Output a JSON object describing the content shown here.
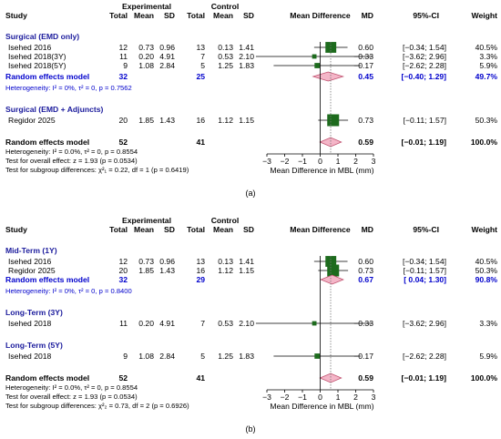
{
  "panels": [
    {
      "caption": "(a)",
      "headers": {
        "study": "Study",
        "experimental": "Experimental",
        "control": "Control",
        "total": "Total",
        "mean": "Mean",
        "sd": "SD",
        "mean_difference": "Mean Difference",
        "md": "MD",
        "ci": "95%-CI",
        "weight": "Weight"
      },
      "groups": [
        {
          "title": "Surgical (EMD only)",
          "studies": [
            {
              "name": "Isehed 2016",
              "e_total": "12",
              "e_mean": "0.73",
              "e_sd": "0.96",
              "c_total": "13",
              "c_mean": "0.13",
              "c_sd": "1.41",
              "md_text": "0.60",
              "ci_text": "[−0.34; 1.54]",
              "weight_text": "40.5%",
              "md": 0.6,
              "lo": -0.34,
              "hi": 1.54,
              "weight": 40.5
            },
            {
              "name": "Isehed 2018(3Y)",
              "e_total": "11",
              "e_mean": "0.20",
              "e_sd": "4.91",
              "c_total": "7",
              "c_mean": "0.53",
              "c_sd": "2.10",
              "md_text": "−0.33",
              "ci_text": "[−3.62; 2.96]",
              "weight_text": "3.3%",
              "md": -0.33,
              "lo": -3.62,
              "hi": 2.96,
              "weight": 3.3
            },
            {
              "name": "Isehed 2018(5Y)",
              "e_total": "9",
              "e_mean": "1.08",
              "e_sd": "2.84",
              "c_total": "5",
              "c_mean": "1.25",
              "c_sd": "1.83",
              "md_text": "−0.17",
              "ci_text": "[−2.62; 2.28]",
              "weight_text": "5.9%",
              "md": -0.17,
              "lo": -2.62,
              "hi": 2.28,
              "weight": 5.9
            }
          ],
          "pooled": {
            "label": "Random effects model",
            "e_total": "32",
            "c_total": "25",
            "md_text": "0.45",
            "ci_text": "[−0.40; 1.29]",
            "weight_text": "49.7%",
            "md": 0.45,
            "lo": -0.4,
            "hi": 1.29
          },
          "heterogeneity": "Heterogeneity: I² = 0%, τ² = 0, p = 0.7562"
        },
        {
          "title": "Surgical (EMD + Adjuncts)",
          "studies": [
            {
              "name": "Regidor 2025",
              "e_total": "20",
              "e_mean": "1.85",
              "e_sd": "1.43",
              "c_total": "16",
              "c_mean": "1.12",
              "c_sd": "1.15",
              "md_text": "0.73",
              "ci_text": "[−0.11; 1.57]",
              "weight_text": "50.3%",
              "md": 0.73,
              "lo": -0.11,
              "hi": 1.57,
              "weight": 50.3
            }
          ]
        }
      ],
      "overall": {
        "label": "Random effects model",
        "e_total": "52",
        "c_total": "41",
        "md_text": "0.59",
        "ci_text": "[−0.01; 1.19]",
        "weight_text": "100.0%",
        "md": 0.59,
        "lo": -0.01,
        "hi": 1.19
      },
      "footer": [
        "Heterogeneity: I² = 0.0%, τ² = 0, p = 0.8554",
        "Test for overall effect: z = 1.93 (p = 0.0534)",
        "Test for subgroup differences: χ²₁ = 0.22, df = 1 (p = 0.6419)"
      ],
      "axis": {
        "ticks": [
          -3,
          -2,
          -1,
          0,
          1,
          2,
          3
        ],
        "xlabel": "Mean Difference in MBL (mm)"
      }
    },
    {
      "caption": "(b)",
      "headers": {
        "study": "Study",
        "experimental": "Experimental",
        "control": "Control",
        "total": "Total",
        "mean": "Mean",
        "sd": "SD",
        "mean_difference": "Mean Difference",
        "md": "MD",
        "ci": "95%-CI",
        "weight": "Weight"
      },
      "groups": [
        {
          "title": "Mid-Term (1Y)",
          "studies": [
            {
              "name": "Isehed 2016",
              "e_total": "12",
              "e_mean": "0.73",
              "e_sd": "0.96",
              "c_total": "13",
              "c_mean": "0.13",
              "c_sd": "1.41",
              "md_text": "0.60",
              "ci_text": "[−0.34; 1.54]",
              "weight_text": "40.5%",
              "md": 0.6,
              "lo": -0.34,
              "hi": 1.54,
              "weight": 40.5
            },
            {
              "name": "Regidor 2025",
              "e_total": "20",
              "e_mean": "1.85",
              "e_sd": "1.43",
              "c_total": "16",
              "c_mean": "1.12",
              "c_sd": "1.15",
              "md_text": "0.73",
              "ci_text": "[−0.11; 1.57]",
              "weight_text": "50.3%",
              "md": 0.73,
              "lo": -0.11,
              "hi": 1.57,
              "weight": 50.3
            }
          ],
          "pooled": {
            "label": "Random effects model",
            "e_total": "32",
            "c_total": "29",
            "md_text": "0.67",
            "ci_text": "[ 0.04; 1.30]",
            "weight_text": "90.8%",
            "md": 0.67,
            "lo": 0.04,
            "hi": 1.3
          },
          "heterogeneity": "Heterogeneity: I² = 0%, τ² = 0, p = 0.8400"
        },
        {
          "title": "Long-Term (3Y)",
          "studies": [
            {
              "name": "Isehed 2018",
              "e_total": "11",
              "e_mean": "0.20",
              "e_sd": "4.91",
              "c_total": "7",
              "c_mean": "0.53",
              "c_sd": "2.10",
              "md_text": "−0.33",
              "ci_text": "[−3.62; 2.96]",
              "weight_text": "3.3%",
              "md": -0.33,
              "lo": -3.62,
              "hi": 2.96,
              "weight": 3.3
            }
          ]
        },
        {
          "title": "Long-Term (5Y)",
          "studies": [
            {
              "name": "Isehed 2018",
              "e_total": "9",
              "e_mean": "1.08",
              "e_sd": "2.84",
              "c_total": "5",
              "c_mean": "1.25",
              "c_sd": "1.83",
              "md_text": "−0.17",
              "ci_text": "[−2.62; 2.28]",
              "weight_text": "5.9%",
              "md": -0.17,
              "lo": -2.62,
              "hi": 2.28,
              "weight": 5.9
            }
          ]
        }
      ],
      "overall": {
        "label": "Random effects model",
        "e_total": "52",
        "c_total": "41",
        "md_text": "0.59",
        "ci_text": "[−0.01; 1.19]",
        "weight_text": "100.0%",
        "md": 0.59,
        "lo": -0.01,
        "hi": 1.19
      },
      "footer": [
        "Heterogeneity: I² = 0.0%, τ² = 0, p = 0.8554",
        "Test for overall effect: z = 1.93 (p = 0.0534)",
        "Test for subgroup differences: χ²₂ = 0.73, df = 2 (p = 0.6926)"
      ],
      "axis": {
        "ticks": [
          -3,
          -2,
          -1,
          0,
          1,
          2,
          3
        ],
        "xlabel": "Mean Difference in MBL (mm)"
      }
    }
  ],
  "colors": {
    "text": "#000000",
    "group_title": "#1a1a9c",
    "pooled_text": "#0000cc",
    "square": "#1d6b1d",
    "diamond_fill": "#f4b6c8",
    "diamond_stroke": "#c0506e",
    "line": "#000000",
    "dashed": "#777777"
  },
  "chart_data": [
    {
      "type": "forest",
      "panel": "(a)",
      "xlabel": "Mean Difference in MBL (mm)",
      "xlim": [
        -3,
        3
      ],
      "studies": [
        {
          "name": "Isehed 2016",
          "subgroup": "Surgical (EMD only)",
          "md": 0.6,
          "ci": [
            -0.34,
            1.54
          ],
          "weight": 40.5
        },
        {
          "name": "Isehed 2018(3Y)",
          "subgroup": "Surgical (EMD only)",
          "md": -0.33,
          "ci": [
            -3.62,
            2.96
          ],
          "weight": 3.3
        },
        {
          "name": "Isehed 2018(5Y)",
          "subgroup": "Surgical (EMD only)",
          "md": -0.17,
          "ci": [
            -2.62,
            2.28
          ],
          "weight": 5.9
        },
        {
          "name": "Regidor 2025",
          "subgroup": "Surgical (EMD + Adjuncts)",
          "md": 0.73,
          "ci": [
            -0.11,
            1.57
          ],
          "weight": 50.3
        }
      ],
      "subgroup_pooled": [
        {
          "subgroup": "Surgical (EMD only)",
          "md": 0.45,
          "ci": [
            -0.4,
            1.29
          ],
          "weight": 49.7
        }
      ],
      "overall": {
        "md": 0.59,
        "ci": [
          -0.01,
          1.19
        ],
        "weight": 100.0
      }
    },
    {
      "type": "forest",
      "panel": "(b)",
      "xlabel": "Mean Difference in MBL (mm)",
      "xlim": [
        -3,
        3
      ],
      "studies": [
        {
          "name": "Isehed 2016",
          "subgroup": "Mid-Term (1Y)",
          "md": 0.6,
          "ci": [
            -0.34,
            1.54
          ],
          "weight": 40.5
        },
        {
          "name": "Regidor 2025",
          "subgroup": "Mid-Term (1Y)",
          "md": 0.73,
          "ci": [
            -0.11,
            1.57
          ],
          "weight": 50.3
        },
        {
          "name": "Isehed 2018",
          "subgroup": "Long-Term (3Y)",
          "md": -0.33,
          "ci": [
            -3.62,
            2.96
          ],
          "weight": 3.3
        },
        {
          "name": "Isehed 2018",
          "subgroup": "Long-Term (5Y)",
          "md": -0.17,
          "ci": [
            -2.62,
            2.28
          ],
          "weight": 5.9
        }
      ],
      "subgroup_pooled": [
        {
          "subgroup": "Mid-Term (1Y)",
          "md": 0.67,
          "ci": [
            0.04,
            1.3
          ],
          "weight": 90.8
        }
      ],
      "overall": {
        "md": 0.59,
        "ci": [
          -0.01,
          1.19
        ],
        "weight": 100.0
      }
    }
  ]
}
